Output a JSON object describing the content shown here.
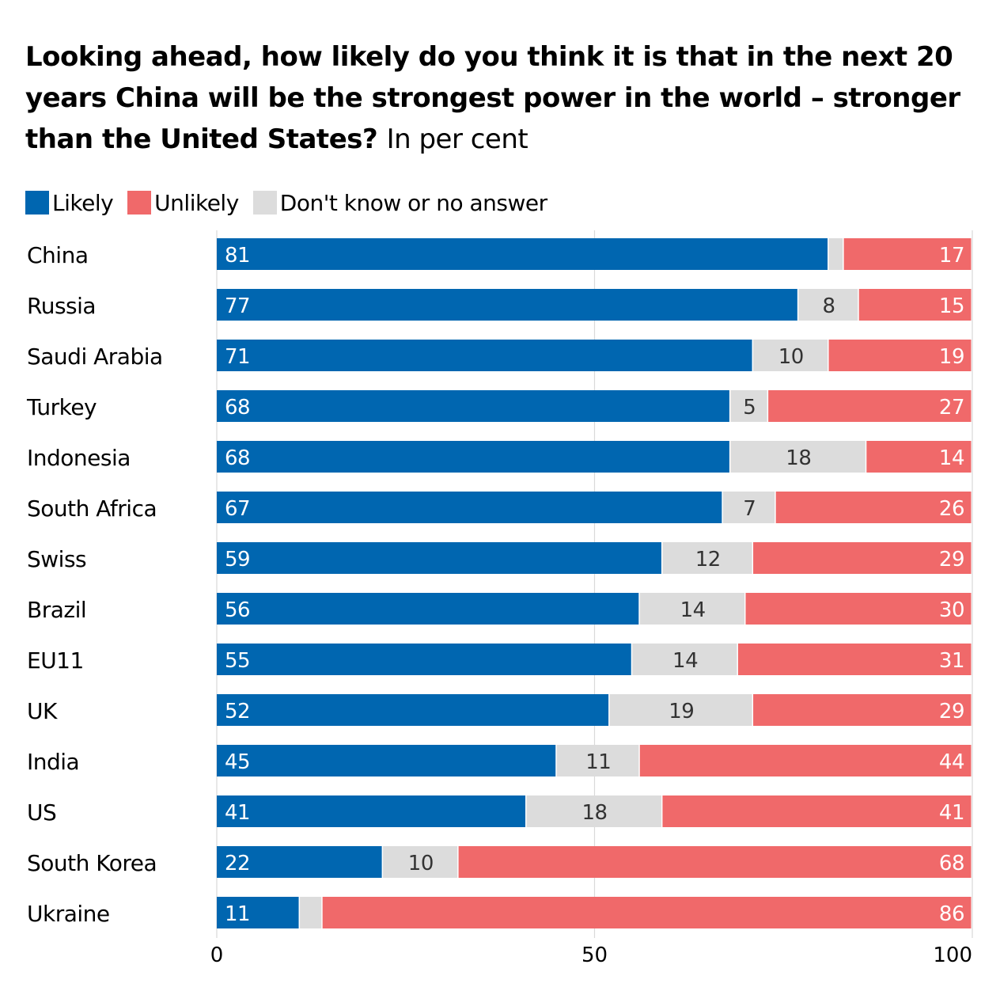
{
  "title": "Looking ahead, how likely do you think it is that in the next 20 years China will be the strongest power in the world – stronger than the United States?",
  "subtitle": "In per cent",
  "colors": {
    "likely": "#0066b0",
    "unlikely": "#f0696a",
    "dont_know": "#dcdcdc",
    "grid": "#d9d9d9"
  },
  "chart_data": {
    "type": "bar",
    "orientation": "horizontal",
    "stacked": true,
    "categories": [
      "China",
      "Russia",
      "Saudi Arabia",
      "Turkey",
      "Indonesia",
      "South Africa",
      "Swiss",
      "Brazil",
      "EU11",
      "UK",
      "India",
      "US",
      "South Korea",
      "Ukraine"
    ],
    "series": [
      {
        "name": "Likely",
        "values": [
          81,
          77,
          71,
          68,
          68,
          67,
          59,
          56,
          55,
          52,
          45,
          41,
          22,
          11
        ]
      },
      {
        "name": "Don't know or no answer",
        "values": [
          2,
          8,
          10,
          5,
          18,
          7,
          12,
          14,
          14,
          19,
          11,
          18,
          10,
          3
        ]
      },
      {
        "name": "Unlikely",
        "values": [
          17,
          15,
          19,
          27,
          14,
          26,
          29,
          30,
          31,
          29,
          44,
          41,
          68,
          86
        ]
      }
    ],
    "value_labels": {
      "Likely": [
        "81",
        "77",
        "71",
        "68",
        "68",
        "67",
        "59",
        "56",
        "55",
        "52",
        "45",
        "41",
        "22",
        "11"
      ],
      "Don't know or no answer": [
        "",
        "8",
        "10",
        "5",
        "18",
        "7",
        "12",
        "14",
        "14",
        "19",
        "11",
        "18",
        "10",
        ""
      ],
      "Unlikely": [
        "17",
        "15",
        "19",
        "27",
        "14",
        "26",
        "29",
        "30",
        "31",
        "29",
        "44",
        "41",
        "68",
        "86"
      ]
    },
    "xlim": [
      0,
      100
    ],
    "xticks": [
      "0",
      "50",
      "100"
    ],
    "grid": true,
    "legend_position": "top-left"
  }
}
